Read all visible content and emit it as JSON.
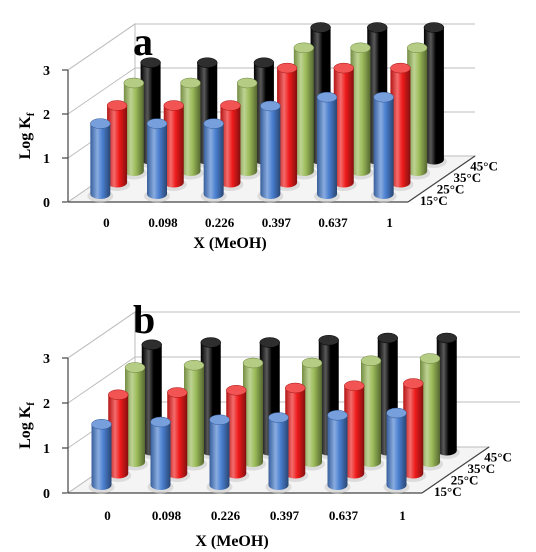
{
  "chart_data": [
    {
      "type": "bar3d",
      "panel": "a",
      "categories": [
        "0",
        "0.098",
        "0.226",
        "0.397",
        "0.637",
        "1"
      ],
      "xlabel": "X (MeOH)",
      "ylabel": "Log K",
      "ylabel_sub": "f",
      "ylim": [
        0,
        3
      ],
      "yticks": [
        "0",
        "1",
        "2",
        "3"
      ],
      "series": [
        {
          "name": "15°C",
          "color": "#4a7fd0",
          "values": [
            1.6,
            1.6,
            1.6,
            2.0,
            2.2,
            2.2
          ]
        },
        {
          "name": "25°C",
          "color": "#ee1b1b",
          "values": [
            1.75,
            1.75,
            1.75,
            2.6,
            2.6,
            2.6
          ]
        },
        {
          "name": "35°C",
          "color": "#9bbb59",
          "values": [
            2.0,
            2.0,
            2.0,
            2.8,
            2.8,
            2.8
          ]
        },
        {
          "name": "45°C",
          "color": "#000000",
          "values": [
            2.2,
            2.2,
            2.2,
            3.0,
            3.0,
            3.0
          ]
        }
      ]
    },
    {
      "type": "bar3d",
      "panel": "b",
      "categories": [
        "0",
        "0.098",
        "0.226",
        "0.397",
        "0.637",
        "1"
      ],
      "xlabel": "X (MeOH)",
      "ylabel": "Log K",
      "ylabel_sub": "f",
      "ylim": [
        0,
        3
      ],
      "yticks": [
        "0",
        "1",
        "2",
        "3"
      ],
      "series": [
        {
          "name": "15°C",
          "color": "#4a7fd0",
          "values": [
            1.35,
            1.4,
            1.45,
            1.5,
            1.55,
            1.6
          ]
        },
        {
          "name": "25°C",
          "color": "#ee1b1b",
          "values": [
            1.75,
            1.8,
            1.85,
            1.9,
            1.95,
            2.0
          ]
        },
        {
          "name": "35°C",
          "color": "#9bbb59",
          "values": [
            2.1,
            2.15,
            2.2,
            2.2,
            2.25,
            2.3
          ]
        },
        {
          "name": "45°C",
          "color": "#000000",
          "values": [
            2.35,
            2.4,
            2.4,
            2.45,
            2.5,
            2.5
          ]
        }
      ]
    }
  ]
}
